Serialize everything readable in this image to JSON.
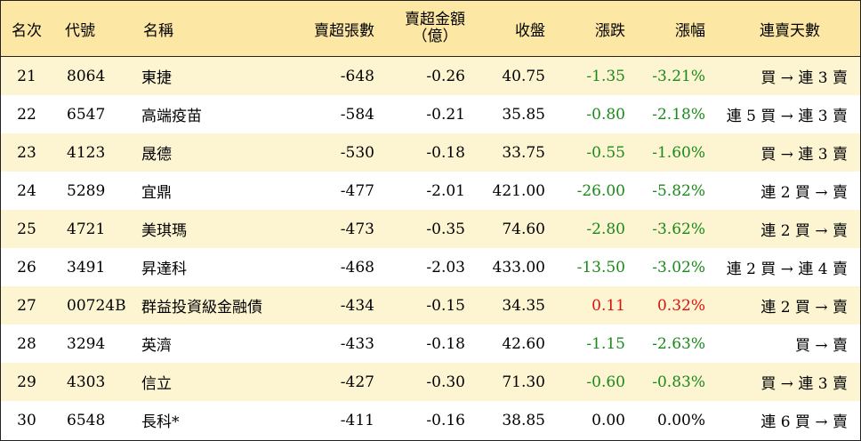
{
  "headers": {
    "rank": "名次",
    "code": "代號",
    "name": "名稱",
    "net_sell_lots": "賣超張數",
    "net_sell_amount_line1": "賣超金額",
    "net_sell_amount_line2": "（億）",
    "close": "收盤",
    "change": "漲跌",
    "change_pct": "漲幅",
    "consecutive_days": "連賣天數"
  },
  "rows": [
    {
      "rank": "21",
      "code": "8064",
      "name": "東捷",
      "lots": "-648",
      "amount": "-0.26",
      "close": "40.75",
      "change": "-1.35",
      "pct": "-3.21%",
      "days": "買 → 連 3 賣",
      "trend": "down"
    },
    {
      "rank": "22",
      "code": "6547",
      "name": "高端疫苗",
      "lots": "-584",
      "amount": "-0.21",
      "close": "35.85",
      "change": "-0.80",
      "pct": "-2.18%",
      "days": "連 5 買 → 連 3 賣",
      "trend": "down"
    },
    {
      "rank": "23",
      "code": "4123",
      "name": "晟德",
      "lots": "-530",
      "amount": "-0.18",
      "close": "33.75",
      "change": "-0.55",
      "pct": "-1.60%",
      "days": "買 → 連 3 賣",
      "trend": "down"
    },
    {
      "rank": "24",
      "code": "5289",
      "name": "宜鼎",
      "lots": "-477",
      "amount": "-2.01",
      "close": "421.00",
      "change": "-26.00",
      "pct": "-5.82%",
      "days": "連 2 買 → 賣",
      "trend": "down"
    },
    {
      "rank": "25",
      "code": "4721",
      "name": "美琪瑪",
      "lots": "-473",
      "amount": "-0.35",
      "close": "74.60",
      "change": "-2.80",
      "pct": "-3.62%",
      "days": "連 2 買 → 賣",
      "trend": "down"
    },
    {
      "rank": "26",
      "code": "3491",
      "name": "昇達科",
      "lots": "-468",
      "amount": "-2.03",
      "close": "433.00",
      "change": "-13.50",
      "pct": "-3.02%",
      "days": "連 2 買 → 連 4 賣",
      "trend": "down"
    },
    {
      "rank": "27",
      "code": "00724B",
      "name": "群益投資級金融債",
      "lots": "-434",
      "amount": "-0.15",
      "close": "34.35",
      "change": "0.11",
      "pct": "0.32%",
      "days": "連 2 買 → 賣",
      "trend": "up"
    },
    {
      "rank": "28",
      "code": "3294",
      "name": "英濟",
      "lots": "-433",
      "amount": "-0.18",
      "close": "42.60",
      "change": "-1.15",
      "pct": "-2.63%",
      "days": "買 → 賣",
      "trend": "down"
    },
    {
      "rank": "29",
      "code": "4303",
      "name": "信立",
      "lots": "-427",
      "amount": "-0.30",
      "close": "71.30",
      "change": "-0.60",
      "pct": "-0.83%",
      "days": "買 → 連 3 賣",
      "trend": "down"
    },
    {
      "rank": "30",
      "code": "6548",
      "name": "長科*",
      "lots": "-411",
      "amount": "-0.16",
      "close": "38.85",
      "change": "0.00",
      "pct": "0.00%",
      "days": "連 6 買 → 賣",
      "trend": "flat"
    }
  ],
  "colors": {
    "header_bg": "#fde7a4",
    "odd_row_bg": "#fdf5d2",
    "even_row_bg": "#ffffff",
    "down": "#1a8a1a",
    "up": "#e01010",
    "flat": "#000000"
  }
}
